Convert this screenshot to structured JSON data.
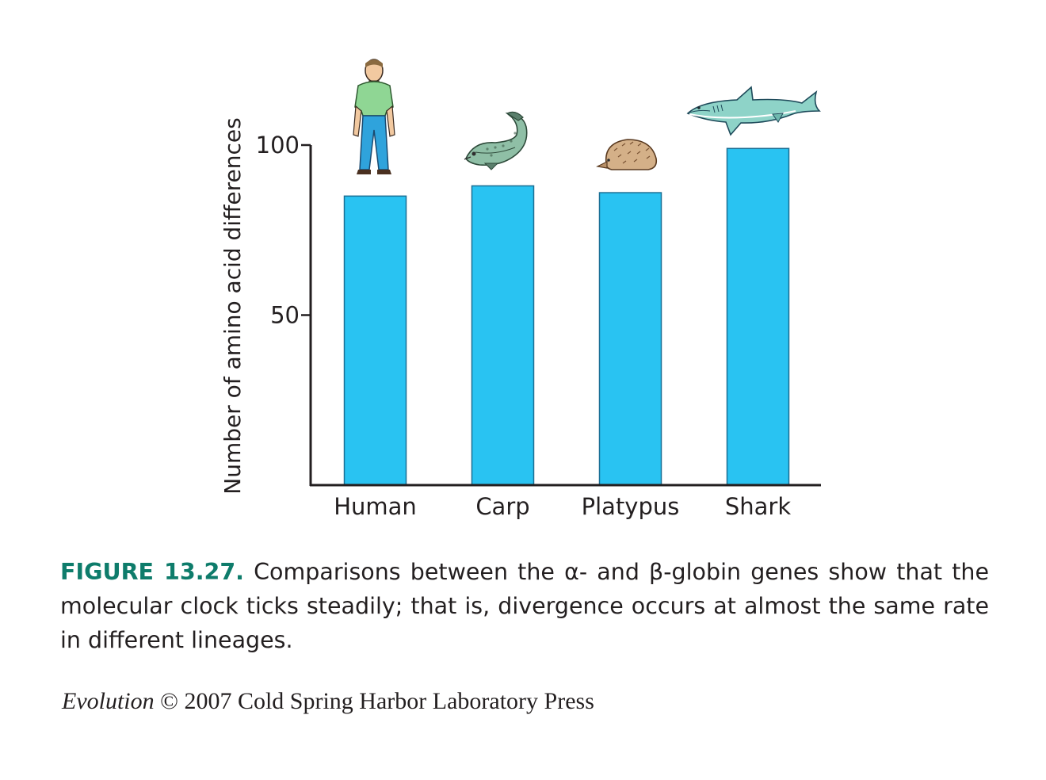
{
  "chart_data": {
    "type": "bar",
    "categories": [
      "Human",
      "Carp",
      "Platypus",
      "Shark"
    ],
    "values": [
      85,
      88,
      86,
      99
    ],
    "title": "",
    "xlabel": "",
    "ylabel": "Number of amino acid differences",
    "ylim": [
      0,
      100
    ],
    "yticks": [
      50,
      100
    ],
    "grid": false,
    "bar_color": "#29c3f2",
    "bar_edge_color": "#1a6f94",
    "icons": [
      "human-icon",
      "carp-icon",
      "platypus-icon",
      "shark-icon"
    ]
  },
  "caption": {
    "figure_number": "FIGURE 13.27.",
    "text": " Comparisons between the α- and β-globin genes show that the molecular clock ticks steadily; that is, divergence occurs at almost the same rate in different lineages."
  },
  "credit": {
    "book": "Evolution",
    "rest": " © 2007 Cold Spring Harbor Laboratory Press"
  }
}
